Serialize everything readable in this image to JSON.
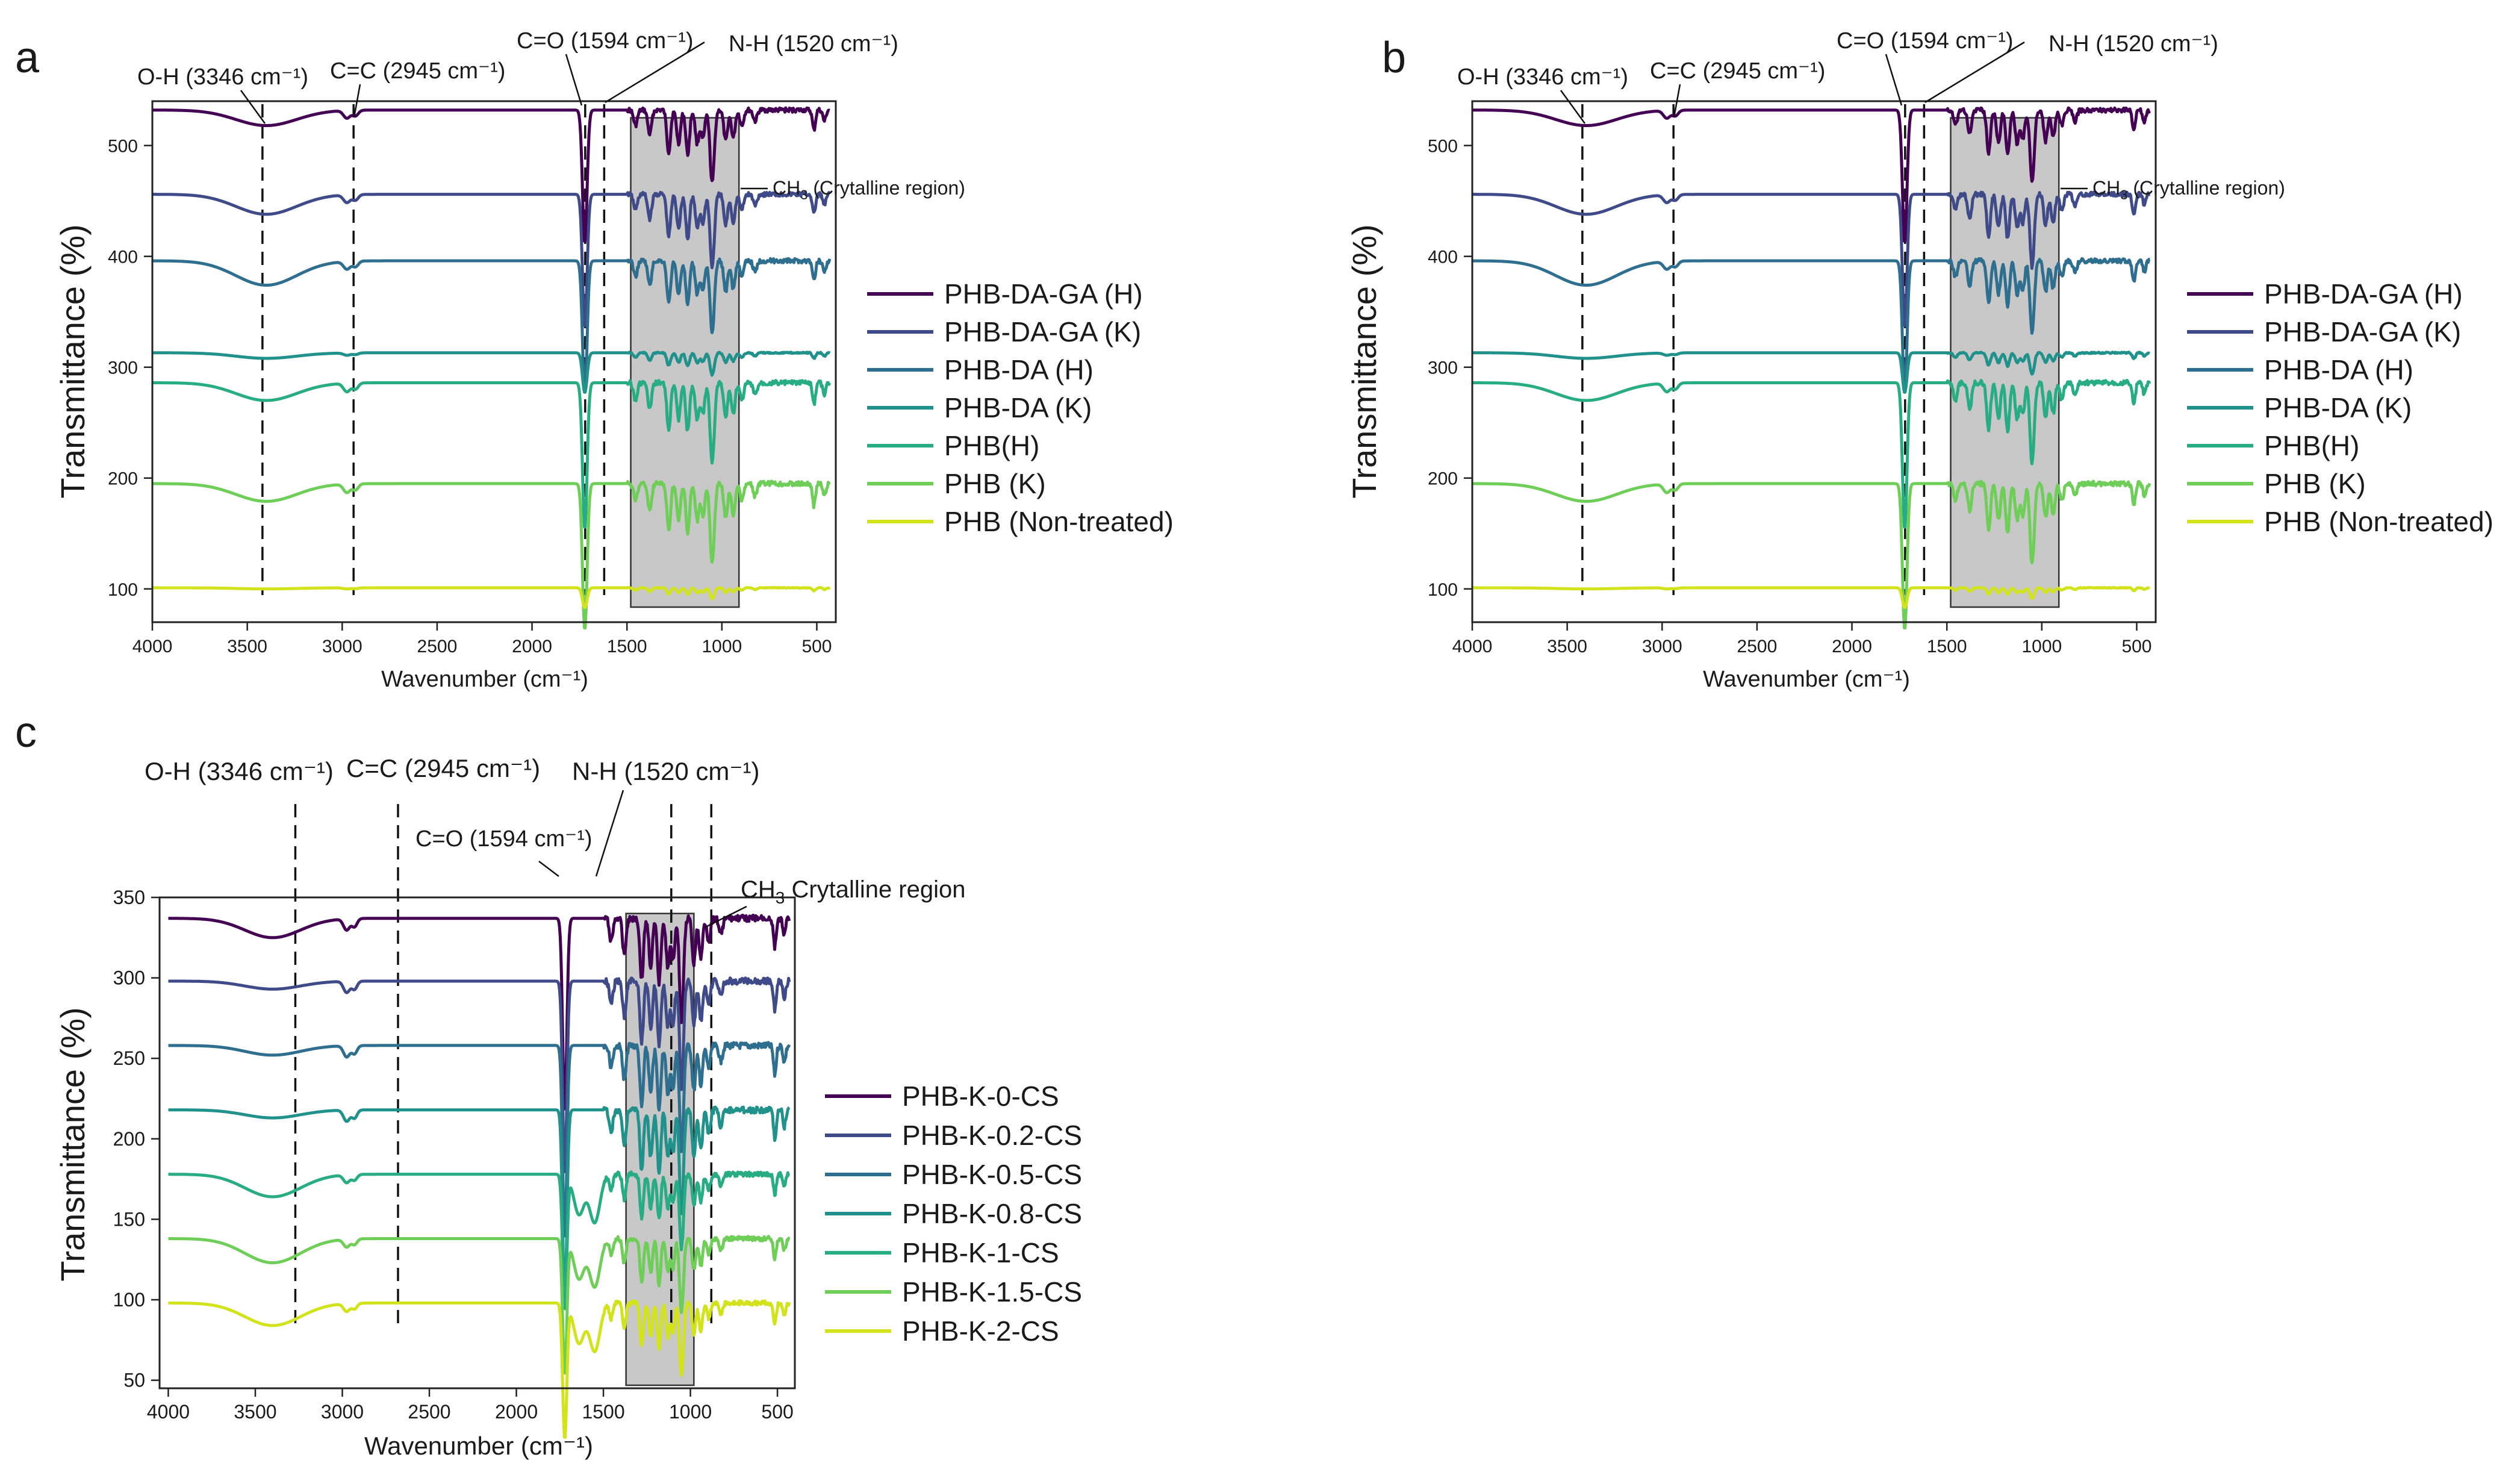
{
  "colors": {
    "axis": "#222222",
    "shade": "#9a9a9a",
    "series": [
      "#440154",
      "#3f4a89",
      "#2e6e8e",
      "#21918c",
      "#27ad81",
      "#6ece58",
      "#d2e21b"
    ]
  },
  "chart_data": [
    {
      "type": "line",
      "panel_label": "a",
      "xlabel": "Wavenumber (cm⁻¹)",
      "ylabel": "Transmittance (%)",
      "xlim": [
        4000,
        400
      ],
      "ylim": [
        70,
        540
      ],
      "x_ticks": [
        4000,
        3500,
        3000,
        2500,
        2000,
        1500,
        1000,
        500
      ],
      "y_ticks": [
        100,
        200,
        300,
        400,
        500
      ],
      "shaded_region": [
        1480,
        910
      ],
      "dashed_lines": [
        3420,
        2940,
        1720,
        1620
      ],
      "annotations": {
        "oh": "O-H (3346 cm⁻¹)",
        "cc": "C=C (2945 cm⁻¹)",
        "co": "C=O (1594 cm⁻¹)",
        "nh": "N-H (1520 cm⁻¹)",
        "ch3_prefix": "CH",
        "ch3_sub": "3",
        "ch3_suffix": " (Crytalline region)"
      },
      "series": [
        {
          "name": "PHB-DA-GA (H)",
          "baseline": 532,
          "oh_depth": 14,
          "strength": 1.0
        },
        {
          "name": "PHB-DA-GA (K)",
          "baseline": 456,
          "oh_depth": 18,
          "strength": 1.0
        },
        {
          "name": "PHB-DA (H)",
          "baseline": 396,
          "oh_depth": 22,
          "strength": 1.0
        },
        {
          "name": "PHB-DA (K)",
          "baseline": 313,
          "oh_depth": 5,
          "strength": 0.3
        },
        {
          "name": "PHB(H)",
          "baseline": 286,
          "oh_depth": 16,
          "strength": 1.1
        },
        {
          "name": "PHB (K)",
          "baseline": 195,
          "oh_depth": 16,
          "strength": 1.1
        },
        {
          "name": "PHB (Non-treated)",
          "baseline": 101,
          "oh_depth": 1,
          "strength": 0.15
        }
      ]
    },
    {
      "type": "line",
      "panel_label": "b",
      "xlabel": "Wavenumber (cm⁻¹)",
      "ylabel": "Transmittance (%)",
      "xlim": [
        4000,
        400
      ],
      "ylim": [
        70,
        540
      ],
      "x_ticks": [
        4000,
        3500,
        3000,
        2500,
        2000,
        1500,
        1000,
        500
      ],
      "y_ticks": [
        100,
        200,
        300,
        400,
        500
      ],
      "shaded_region": [
        1480,
        910
      ],
      "dashed_lines": [
        3420,
        2940,
        1720,
        1620
      ],
      "annotations": {
        "oh": "O-H (3346 cm⁻¹)",
        "cc": "C=C (2945 cm⁻¹)",
        "co": "C=O (1594 cm⁻¹)",
        "nh": "N-H (1520 cm⁻¹)",
        "ch3_prefix": "CH",
        "ch3_sub": "3",
        "ch3_suffix": " (Crytalline region)"
      },
      "series": [
        {
          "name": "PHB-DA-GA (H)",
          "baseline": 532,
          "oh_depth": 14,
          "strength": 1.0
        },
        {
          "name": "PHB-DA-GA (K)",
          "baseline": 456,
          "oh_depth": 18,
          "strength": 1.0
        },
        {
          "name": "PHB-DA (H)",
          "baseline": 396,
          "oh_depth": 22,
          "strength": 1.0
        },
        {
          "name": "PHB-DA (K)",
          "baseline": 313,
          "oh_depth": 5,
          "strength": 0.3
        },
        {
          "name": "PHB(H)",
          "baseline": 286,
          "oh_depth": 16,
          "strength": 1.1
        },
        {
          "name": "PHB (K)",
          "baseline": 195,
          "oh_depth": 16,
          "strength": 1.1
        },
        {
          "name": "PHB (Non-treated)",
          "baseline": 101,
          "oh_depth": 1,
          "strength": 0.15
        }
      ]
    },
    {
      "type": "line",
      "panel_label": "c",
      "xlabel": "Wavenumber (cm⁻¹)",
      "ylabel": "Transmittance (%)",
      "xlim": [
        4050,
        400
      ],
      "ylim": [
        45,
        350
      ],
      "x_ticks": [
        4000,
        3500,
        3000,
        2500,
        2000,
        1500,
        1000,
        500
      ],
      "y_ticks": [
        50,
        100,
        150,
        200,
        250,
        300,
        350
      ],
      "shaded_region": [
        1370,
        980
      ],
      "dashed_lines": [
        3270,
        2680,
        1110,
        880
      ],
      "annotations": {
        "oh": "O-H (3346 cm⁻¹)",
        "cc": "C=C (2945 cm⁻¹)",
        "co": "C=O (1594 cm⁻¹)",
        "nh": "N-H (1520 cm⁻¹)",
        "ch3_prefix": "CH",
        "ch3_sub": "3",
        "ch3_suffix": " Crytalline region"
      },
      "series": [
        {
          "name": "PHB-K-0-CS",
          "baseline": 337,
          "oh_depth": 12,
          "strength": 1.0
        },
        {
          "name": "PHB-K-0.2-CS",
          "baseline": 298,
          "oh_depth": 5,
          "strength": 1.0
        },
        {
          "name": "PHB-K-0.5-CS",
          "baseline": 258,
          "oh_depth": 6,
          "strength": 1.0
        },
        {
          "name": "PHB-K-0.8-CS",
          "baseline": 218,
          "oh_depth": 5,
          "strength": 1.0
        },
        {
          "name": "PHB-K-1-CS",
          "baseline": 178,
          "oh_depth": 14,
          "strength": 0.7
        },
        {
          "name": "PHB-K-1.5-CS",
          "baseline": 138,
          "oh_depth": 15,
          "strength": 0.7
        },
        {
          "name": "PHB-K-2-CS",
          "baseline": 98,
          "oh_depth": 14,
          "strength": 0.7
        }
      ]
    }
  ]
}
